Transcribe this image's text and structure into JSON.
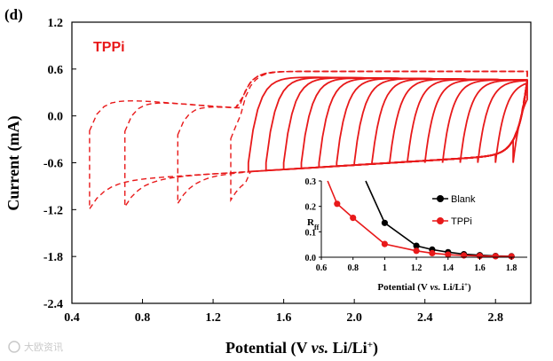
{
  "panel_label": "(d)",
  "watermark_text": "大欧资讯",
  "colors": {
    "tppi": "#e8191a",
    "blank": "#000000",
    "axis": "#000000"
  },
  "chart_data": [
    {
      "id": "main",
      "type": "line",
      "title": "",
      "series_label": "TPPi",
      "xlabel": {
        "main": "Potential (V ",
        "italic": "vs.",
        "rest": " Li/Li",
        "sup": "+",
        "close": ")"
      },
      "ylabel": "Current (mA)",
      "xlim": [
        0.4,
        3.0
      ],
      "ylim": [
        -2.4,
        1.2
      ],
      "xticks": [
        "0.4",
        "0.8",
        "1.2",
        "1.6",
        "2.0",
        "2.4",
        "2.8"
      ],
      "yticks": [
        "1.2",
        "0.6",
        "0.0",
        "-0.6",
        "-1.2",
        "-1.8",
        "-2.4"
      ],
      "xtick_values": [
        0.4,
        0.8,
        1.2,
        1.6,
        2.0,
        2.4,
        2.8
      ],
      "ytick_values": [
        1.2,
        0.6,
        0.0,
        -0.6,
        -1.2,
        -1.8,
        -2.4
      ],
      "dashed_lower_limits_V": [
        0.5,
        0.7,
        1.0,
        1.3
      ],
      "solid_lower_limits_V": [
        1.4,
        1.5,
        1.6,
        1.7,
        1.8,
        1.9,
        2.0,
        2.1,
        2.2,
        2.3,
        2.4,
        2.5,
        2.6,
        2.7,
        2.8,
        2.9
      ]
    },
    {
      "id": "inset",
      "type": "line",
      "ylabel": "R",
      "ylabel_sub": "ff",
      "xlabel": {
        "main": "Potential (V ",
        "italic": "vs.",
        "rest": " Li/Li",
        "sup": "+",
        "close": ")"
      },
      "xlim": [
        0.6,
        1.9
      ],
      "ylim": [
        0.0,
        0.3
      ],
      "xticks": [
        "0.6",
        "0.8",
        "1",
        "1.2",
        "1.4",
        "1.6",
        "1.8"
      ],
      "yticks": [
        "0.3",
        "0.2",
        "0.1",
        "0.0"
      ],
      "xtick_values": [
        0.6,
        0.8,
        1.0,
        1.2,
        1.4,
        1.6,
        1.8
      ],
      "ytick_values": [
        0.3,
        0.2,
        0.1,
        0.0
      ],
      "legend": [
        "Blank",
        "TPPi"
      ],
      "series": [
        {
          "name": "Blank",
          "x": [
            1.0,
            1.2,
            1.3,
            1.4,
            1.5,
            1.6,
            1.7,
            1.8
          ],
          "y": [
            0.135,
            0.045,
            0.03,
            0.02,
            0.012,
            0.008,
            0.005,
            0.004
          ]
        },
        {
          "name": "TPPi",
          "x": [
            0.7,
            0.8,
            1.0,
            1.2,
            1.3,
            1.4,
            1.5,
            1.6,
            1.7,
            1.8
          ],
          "y": [
            0.21,
            0.155,
            0.052,
            0.025,
            0.016,
            0.01,
            0.007,
            0.005,
            0.004,
            0.003
          ]
        }
      ]
    }
  ]
}
